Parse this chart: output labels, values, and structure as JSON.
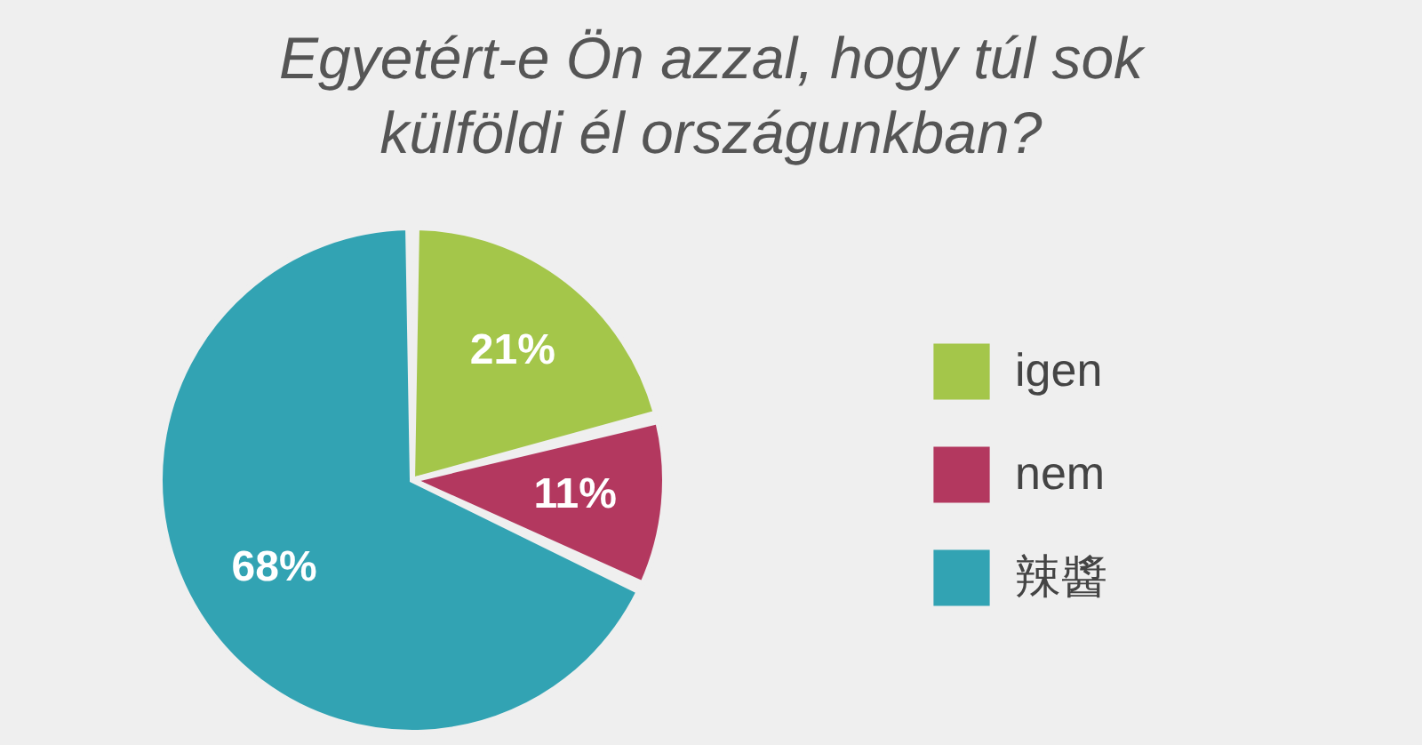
{
  "chart_data": {
    "type": "pie",
    "title": "Egyetért-e Ön azzal, hogy túl sok külföldi él országunkban?",
    "categories": [
      "igen",
      "nem",
      "辣醬"
    ],
    "values": [
      21,
      11,
      68
    ],
    "colors": [
      "#a4c64a",
      "#b3385f",
      "#32a3b3"
    ],
    "value_labels": [
      "21%",
      "11%",
      "68%"
    ],
    "legend": "right"
  }
}
